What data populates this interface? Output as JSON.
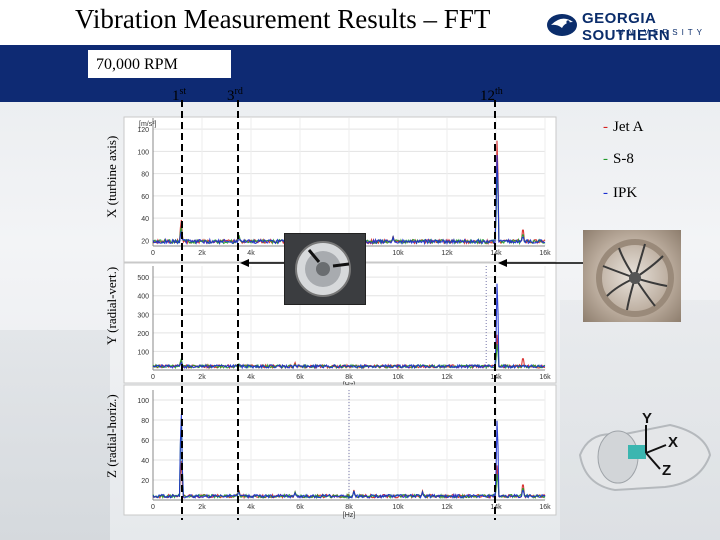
{
  "title": "Vibration Measurement Results – FFT",
  "logo": {
    "line1": "GEORGIA SOUTHERN",
    "line2": "UNIVERSITY",
    "color": "#0b2d6b"
  },
  "banner_color": "#0e2a73",
  "rpm_label": "70,000 RPM",
  "harmonics": [
    {
      "num": "1",
      "suffix": "st"
    },
    {
      "num": "3",
      "suffix": "rd"
    },
    {
      "num": "12",
      "suffix": "th"
    }
  ],
  "axis_labels": {
    "x": "X (turbine axis)",
    "y": "Y (radial-vert.)",
    "z": "Z (radial-horiz.)"
  },
  "legend": [
    {
      "label": "Jet A",
      "color": "#d62020"
    },
    {
      "label": "S-8",
      "color": "#1f9a2a"
    },
    {
      "label": "IPK",
      "color": "#1a2ed0"
    }
  ],
  "cad_axes": {
    "y": "Y",
    "x": "X",
    "z": "Z"
  },
  "chart_data": [
    {
      "type": "line",
      "panel": "X (turbine axis)",
      "yunit": "[m/s²]",
      "xlabel": "[Hz]",
      "xticks": [
        "0",
        "2k",
        "4k",
        "6k",
        "8k",
        "10k",
        "12k",
        "14k",
        "16k"
      ],
      "yticks": [
        "20",
        "40",
        "60",
        "80",
        "100",
        "120"
      ],
      "xlim": [
        0,
        16000
      ],
      "ylim": [
        15,
        130
      ],
      "series": [
        {
          "name": "Jet A",
          "peaks": [
            [
              1150,
              42
            ],
            [
              3500,
              25
            ],
            [
              5800,
              22
            ],
            [
              8200,
              23
            ],
            [
              9800,
              24
            ],
            [
              14050,
              125
            ],
            [
              15100,
              34
            ]
          ]
        },
        {
          "name": "S-8",
          "peaks": [
            [
              1150,
              35
            ],
            [
              3500,
              27
            ],
            [
              5800,
              21
            ],
            [
              8200,
              22
            ],
            [
              9800,
              23
            ],
            [
              14050,
              95
            ],
            [
              15100,
              28
            ]
          ]
        },
        {
          "name": "IPK",
          "peaks": [
            [
              1150,
              30
            ],
            [
              3500,
              22
            ],
            [
              5800,
              21
            ],
            [
              8200,
              22
            ],
            [
              9800,
              23
            ],
            [
              14050,
              110
            ],
            [
              15100,
              25
            ]
          ]
        }
      ]
    },
    {
      "type": "line",
      "panel": "Y (radial-vert.)",
      "xlabel": "[Hz]",
      "xticks": [
        "0",
        "2k",
        "4k",
        "6k",
        "8k",
        "10k",
        "12k",
        "14k",
        "16k"
      ],
      "yticks": [
        "100",
        "200",
        "300",
        "400",
        "500"
      ],
      "xlim": [
        0,
        16000
      ],
      "ylim": [
        0,
        560
      ],
      "series": [
        {
          "name": "Jet A",
          "peaks": [
            [
              1150,
              60
            ],
            [
              3500,
              35
            ],
            [
              5800,
              40
            ],
            [
              8200,
              25
            ],
            [
              9800,
              22
            ],
            [
              14050,
              220
            ],
            [
              15100,
              80
            ]
          ]
        },
        {
          "name": "S-8",
          "peaks": [
            [
              1150,
              70
            ],
            [
              3500,
              40
            ],
            [
              5800,
              30
            ],
            [
              8200,
              20
            ],
            [
              9800,
              18
            ],
            [
              14050,
              160
            ],
            [
              15100,
              30
            ]
          ]
        },
        {
          "name": "IPK",
          "peaks": [
            [
              1150,
              45
            ],
            [
              3500,
              25
            ],
            [
              5800,
              25
            ],
            [
              8200,
              18
            ],
            [
              9800,
              15
            ],
            [
              14050,
              540
            ],
            [
              15100,
              25
            ]
          ]
        }
      ]
    },
    {
      "type": "line",
      "panel": "Z (radial-horiz.)",
      "xlabel": "[Hz]",
      "xticks": [
        "0",
        "2k",
        "4k",
        "6k",
        "8k",
        "10k",
        "12k",
        "14k",
        "16k"
      ],
      "yticks": [
        "20",
        "40",
        "60",
        "80",
        "100"
      ],
      "xlim": [
        0,
        16000
      ],
      "ylim": [
        0,
        110
      ],
      "series": [
        {
          "name": "Jet A",
          "peaks": [
            [
              1150,
              45
            ],
            [
              3500,
              12
            ],
            [
              5800,
              8
            ],
            [
              8200,
              10
            ],
            [
              11000,
              9
            ],
            [
              14050,
              40
            ],
            [
              15100,
              20
            ]
          ]
        },
        {
          "name": "S-8",
          "peaks": [
            [
              1150,
              95
            ],
            [
              3500,
              10
            ],
            [
              5800,
              8
            ],
            [
              8200,
              9
            ],
            [
              11000,
              8
            ],
            [
              14050,
              30
            ],
            [
              15100,
              15
            ]
          ]
        },
        {
          "name": "IPK",
          "peaks": [
            [
              1150,
              100
            ],
            [
              3500,
              9
            ],
            [
              5800,
              7
            ],
            [
              8200,
              9
            ],
            [
              11000,
              8
            ],
            [
              14050,
              92
            ],
            [
              15100,
              12
            ]
          ]
        }
      ]
    }
  ]
}
